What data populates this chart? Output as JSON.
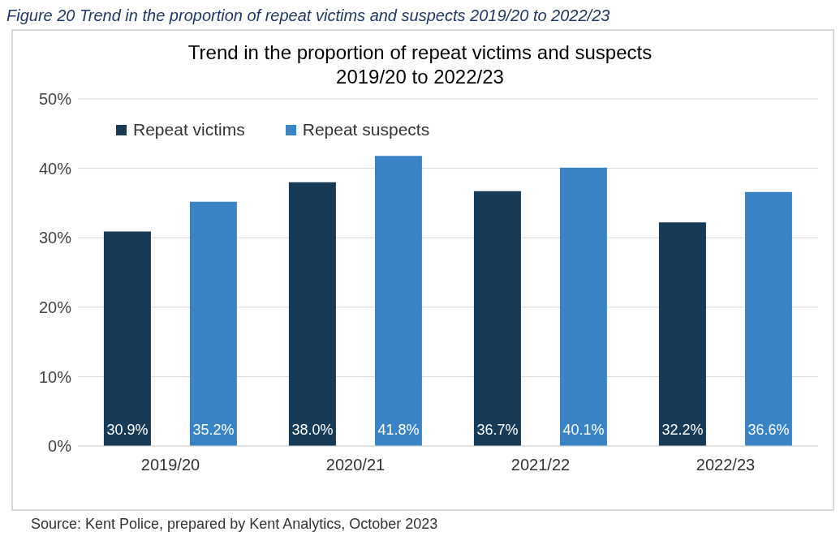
{
  "chart_data": {
    "type": "bar",
    "title": "Trend in the proportion of repeat victims and suspects\n2019/20 to 2022/23",
    "annotations": [
      "Figure 20 Trend in the proportion of repeat victims and suspects 2019/20 to 2022/23",
      "Source: Kent Police, prepared by Kent Analytics, October 2023"
    ],
    "categories": [
      "2019/20",
      "2020/21",
      "2021/22",
      "2022/23"
    ],
    "series": [
      {
        "name": "Repeat victims",
        "color": "#173a56",
        "values": [
          30.9,
          38.0,
          36.7,
          32.2
        ],
        "value_labels": [
          "30.9%",
          "38.0%",
          "36.7%",
          "32.2%"
        ]
      },
      {
        "name": "Repeat suspects",
        "color": "#3a84c6",
        "values": [
          35.2,
          41.8,
          40.1,
          36.6
        ],
        "value_labels": [
          "35.2%",
          "41.8%",
          "40.1%",
          "36.6%"
        ]
      }
    ],
    "ylim": [
      0,
      50
    ],
    "yticks": [
      {
        "value": 0,
        "label": "0%"
      },
      {
        "value": 10,
        "label": "10%"
      },
      {
        "value": 20,
        "label": "20%"
      },
      {
        "value": 30,
        "label": "30%"
      },
      {
        "value": 40,
        "label": "40%"
      },
      {
        "value": 50,
        "label": "50%"
      }
    ],
    "grid": "y",
    "legend": "top left"
  }
}
